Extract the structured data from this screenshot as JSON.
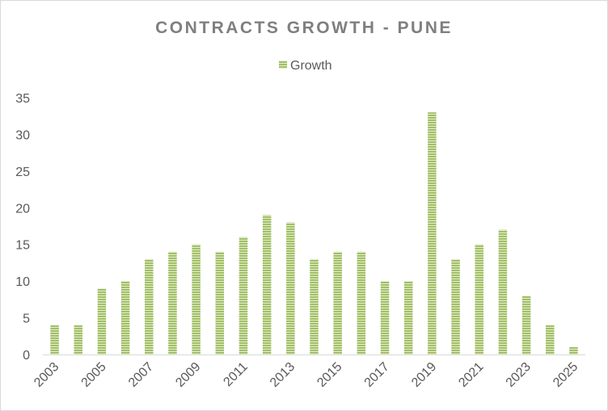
{
  "chart_data": {
    "type": "bar",
    "title": "CONTRACTS GROWTH - PUNE",
    "xlabel": "",
    "ylabel": "",
    "ylim": [
      0,
      35
    ],
    "yticks": [
      0,
      5,
      10,
      15,
      20,
      25,
      30,
      35
    ],
    "grid": false,
    "legend_position": "top-center",
    "categories": [
      "2003",
      "2004",
      "2005",
      "2006",
      "2007",
      "2008",
      "2009",
      "2010",
      "2011",
      "2012",
      "2013",
      "2014",
      "2015",
      "2016",
      "2017",
      "2018",
      "2019",
      "2020",
      "2021",
      "2022",
      "2023",
      "2024",
      "2025"
    ],
    "x_tick_labels": [
      "2003",
      "2005",
      "2007",
      "2009",
      "2011",
      "2013",
      "2015",
      "2017",
      "2019",
      "2021",
      "2023",
      "2025"
    ],
    "series": [
      {
        "name": "Growth",
        "color": "#9bbb59",
        "stripe_color": "#e2edd0",
        "values": [
          4,
          4,
          9,
          10,
          13,
          14,
          15,
          14,
          16,
          19,
          18,
          13,
          14,
          14,
          10,
          10,
          33,
          13,
          15,
          17,
          8,
          4,
          1
        ]
      }
    ]
  }
}
